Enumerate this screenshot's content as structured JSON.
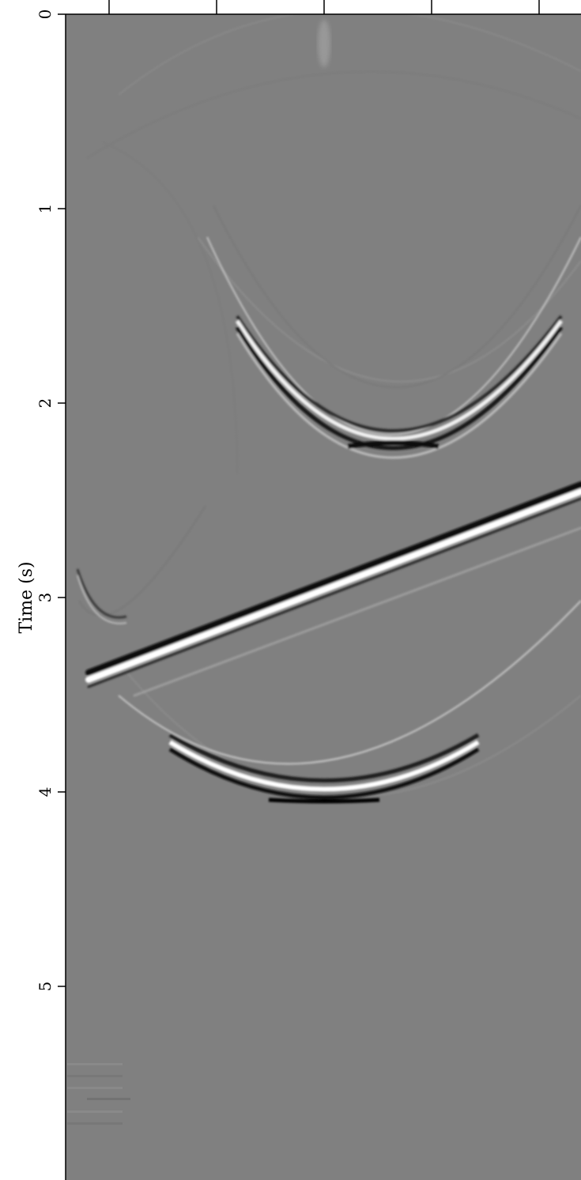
{
  "chart_data": {
    "type": "heatmap",
    "title": "",
    "xlabel": "",
    "ylabel": "Time (s)",
    "ylim": [
      0,
      6
    ],
    "y_inverted": true,
    "y_ticks": [
      0,
      1,
      2,
      3,
      4,
      5
    ],
    "y_tick_labels": [
      "0",
      "1",
      "2",
      "3",
      "4",
      "5"
    ],
    "x_tick_count": 5,
    "grid": false,
    "colormap": "grayscale",
    "colors": {
      "background": "#808080",
      "dark": "#0d0d0d",
      "light": "#ffffff"
    },
    "events": [
      {
        "name": "hyperbola",
        "apex_time_s": 2.15,
        "apex_x_fraction": 0.64
      },
      {
        "name": "dipping-line",
        "start_time_s": 3.42,
        "end_time_s": 2.55
      },
      {
        "name": "hyperbola",
        "apex_time_s": 3.97,
        "apex_x_fraction": 0.5
      }
    ]
  }
}
